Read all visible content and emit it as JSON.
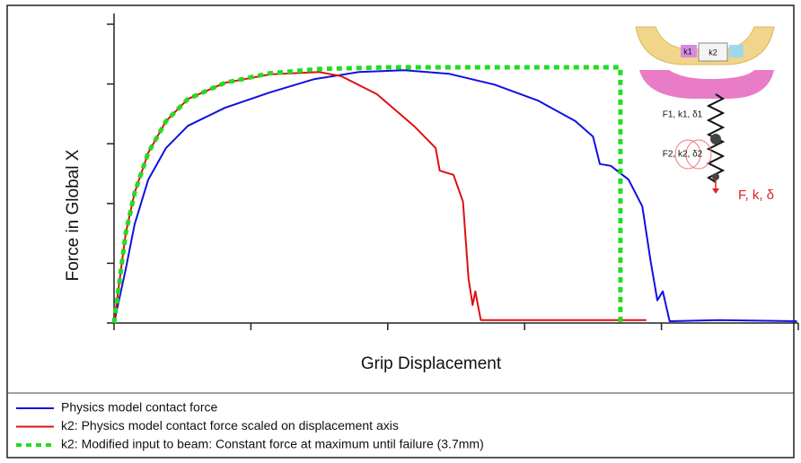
{
  "chart_data": {
    "type": "line",
    "x_label": "Grip Displacement",
    "y_label": "Force in Global X",
    "xlim": [
      0,
      5
    ],
    "xticks": [
      0,
      1,
      2,
      3,
      4,
      5
    ],
    "ylim": [
      0,
      5
    ],
    "yticks": [
      0,
      1,
      2,
      3,
      4,
      5
    ],
    "legend": "bottom",
    "series": [
      {
        "name": "Physics model contact force",
        "color": "#1010e0",
        "style": "solid",
        "x": [
          0,
          0.085,
          0.15,
          0.25,
          0.38,
          0.54,
          0.81,
          1.14,
          1.46,
          1.79,
          2.12,
          2.45,
          2.78,
          3.1,
          3.37,
          3.5,
          3.55,
          3.63,
          3.76,
          3.86,
          3.92,
          3.97,
          4.01,
          4.06,
          4.42,
          4.99
        ],
        "values": [
          0,
          0.9,
          1.65,
          2.4,
          2.93,
          3.3,
          3.6,
          3.86,
          4.08,
          4.2,
          4.23,
          4.17,
          3.99,
          3.72,
          3.38,
          3.12,
          2.66,
          2.63,
          2.4,
          1.95,
          1.05,
          0.38,
          0.53,
          0.03,
          0.05,
          0.03
        ]
      },
      {
        "name": "k2: Physics model contact force scaled on displacement axis",
        "color": "#e01010",
        "style": "solid",
        "x": [
          0,
          0.085,
          0.15,
          0.25,
          0.38,
          0.54,
          0.81,
          1.14,
          1.5,
          1.66,
          1.92,
          2.19,
          2.35,
          2.38,
          2.48,
          2.55,
          2.59,
          2.62,
          2.64,
          2.68,
          3.1,
          3.89
        ],
        "values": [
          0,
          1.5,
          2.18,
          2.85,
          3.38,
          3.75,
          4.02,
          4.16,
          4.2,
          4.13,
          3.83,
          3.3,
          2.93,
          2.55,
          2.48,
          2.03,
          0.75,
          0.3,
          0.53,
          0.05,
          0.05,
          0.05
        ]
      },
      {
        "name": "k2: Modified input to beam: Constant force at maximum until failure (3.7mm)",
        "color": "#22dd22",
        "style": "dotted",
        "x": [
          0,
          0.085,
          0.15,
          0.25,
          0.38,
          0.54,
          0.81,
          1.14,
          1.5,
          2.0,
          3.7,
          3.7
        ],
        "values": [
          0,
          1.5,
          2.18,
          2.85,
          3.38,
          3.75,
          4.02,
          4.18,
          4.25,
          4.28,
          4.28,
          0
        ]
      }
    ],
    "inset_labels": [
      "k1",
      "k2",
      "F1, k1, δ1",
      "F2, k2, δ2",
      "F, k, δ"
    ]
  }
}
